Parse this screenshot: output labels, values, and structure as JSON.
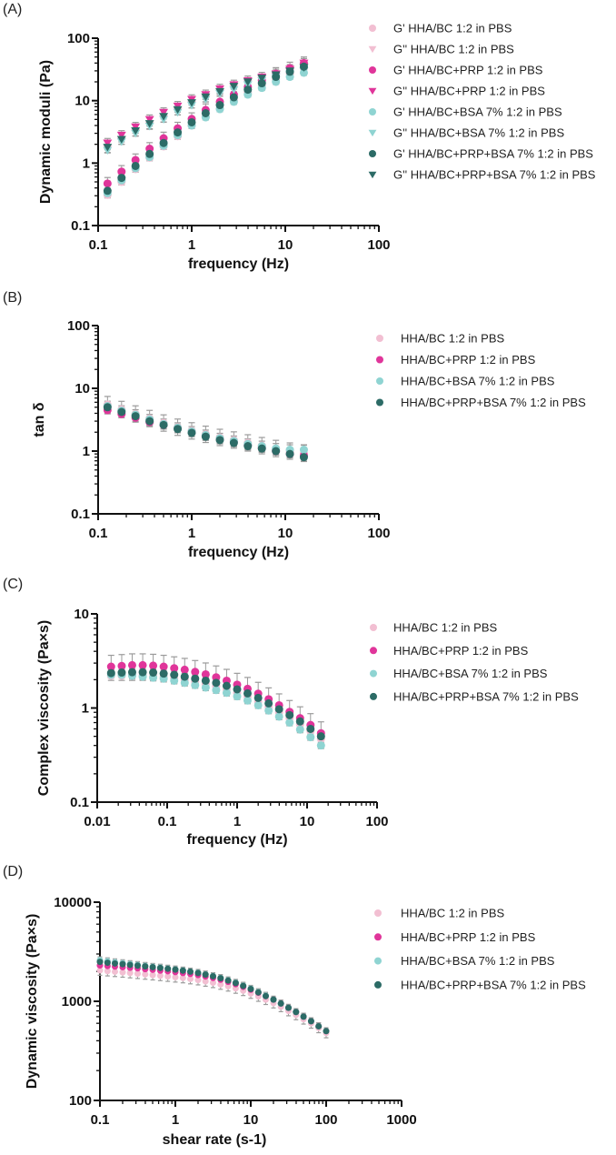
{
  "colors": {
    "bc": "#f2bfd2",
    "prp": "#e0359a",
    "bsa": "#8fd4d2",
    "prpbsa": "#2c6b66",
    "error": "#9a9a9a",
    "axis": "#111111"
  },
  "chart_data": [
    {
      "panel": "(A)",
      "type": "scatter",
      "xscale": "log",
      "yscale": "log",
      "xlabel": "frequency (Hz)",
      "ylabel": "Dynamic moduli (Pa)",
      "xlim": [
        0.1,
        100
      ],
      "ylim": [
        0.1,
        100
      ],
      "xticks": [
        "0.1",
        "1",
        "10",
        "100"
      ],
      "yticks": [
        "0.1",
        "1",
        "10",
        "100"
      ],
      "legend_position": "right",
      "x": [
        0.126,
        0.178,
        0.251,
        0.355,
        0.501,
        0.708,
        1,
        1.41,
        2,
        2.82,
        3.98,
        5.62,
        7.94,
        11.2,
        15.8
      ],
      "series": [
        {
          "name": "G' HHA/BC 1:2 in PBS",
          "color": "bc",
          "marker": "circle",
          "err": 0.12,
          "values": [
            0.31,
            0.5,
            0.8,
            1.22,
            1.85,
            2.7,
            4.0,
            5.5,
            7.5,
            10,
            13.5,
            17.5,
            22,
            27,
            33
          ]
        },
        {
          "name": "G'' HHA/BC 1:2 in PBS",
          "color": "bc",
          "marker": "triangle",
          "err": 0.15,
          "values": [
            1.7,
            2.3,
            3.1,
            4.0,
            5.2,
            6.8,
            8.8,
            11,
            13.5,
            16,
            19,
            22,
            26,
            30,
            35
          ]
        },
        {
          "name": "G' HHA/BC+PRP 1:2 in PBS",
          "color": "prp",
          "marker": "circle",
          "err": 0.25,
          "values": [
            0.47,
            0.73,
            1.12,
            1.7,
            2.5,
            3.6,
            5.1,
            7.1,
            9.6,
            12.5,
            16.5,
            21,
            27,
            33,
            40
          ]
        },
        {
          "name": "G'' HHA/BC+PRP 1:2 in PBS",
          "color": "prp",
          "marker": "triangle",
          "err": 0.18,
          "values": [
            2.1,
            2.8,
            3.8,
            5.0,
            6.5,
            8.2,
            10.5,
            12.5,
            15.5,
            18,
            21,
            24,
            27,
            32,
            40
          ]
        },
        {
          "name": "G' HHA/BC+BSA 7% 1:2 in PBS",
          "color": "bsa",
          "marker": "circle",
          "err": 0.1,
          "values": [
            0.33,
            0.53,
            0.83,
            1.25,
            1.9,
            2.8,
            4.0,
            5.4,
            7.3,
            9.6,
            12.5,
            16,
            20,
            24,
            28
          ]
        },
        {
          "name": "G'' HHA/BC+BSA 7% 1:2 in PBS",
          "color": "bsa",
          "marker": "triangle",
          "err": 0.1,
          "values": [
            1.6,
            2.2,
            3.0,
            3.9,
            5.0,
            6.5,
            8.4,
            10.5,
            13,
            15,
            18,
            21,
            24,
            27,
            30
          ]
        },
        {
          "name": "G' HHA/BC+PRP+BSA 7% 1:2 in PBS",
          "color": "prpbsa",
          "marker": "circle",
          "err": 0.1,
          "values": [
            0.36,
            0.58,
            0.9,
            1.4,
            2.1,
            3.1,
            4.5,
            6.3,
            8.5,
            11.3,
            15,
            19,
            24,
            29,
            35
          ]
        },
        {
          "name": "G'' HHA/BC+PRP+BSA 7% 1:2 in PBS",
          "color": "prpbsa",
          "marker": "triangle",
          "err": 0.1,
          "values": [
            1.8,
            2.4,
            3.3,
            4.3,
            5.6,
            7.2,
            9.3,
            11.5,
            14,
            17,
            20,
            23,
            26,
            30,
            34
          ]
        }
      ]
    },
    {
      "panel": "(B)",
      "type": "scatter",
      "xscale": "log",
      "yscale": "log",
      "xlabel": "frequency (Hz)",
      "ylabel": "tan δ",
      "xlim": [
        0.1,
        100
      ],
      "ylim": [
        0.1,
        100
      ],
      "xticks": [
        "0.1",
        "1",
        "10",
        "100"
      ],
      "yticks": [
        "0.1",
        "1",
        "10",
        "100"
      ],
      "legend_position": "right",
      "x": [
        0.126,
        0.178,
        0.251,
        0.355,
        0.501,
        0.708,
        1,
        1.41,
        2,
        2.82,
        3.98,
        5.62,
        7.94,
        11.2,
        15.8
      ],
      "series": [
        {
          "name": "HHA/BC 1:2 in PBS",
          "color": "bc",
          "marker": "circle",
          "err": 0.35,
          "values": [
            5.5,
            4.6,
            3.9,
            3.3,
            2.8,
            2.4,
            2.1,
            1.85,
            1.65,
            1.5,
            1.35,
            1.22,
            1.1,
            1.0,
            0.92
          ]
        },
        {
          "name": "HHA/BC+PRP 1:2 in PBS",
          "color": "prp",
          "marker": "circle",
          "err": 0.15,
          "values": [
            4.5,
            3.9,
            3.4,
            2.9,
            2.6,
            2.3,
            2.0,
            1.75,
            1.55,
            1.4,
            1.25,
            1.12,
            1.0,
            0.9,
            0.85
          ]
        },
        {
          "name": "HHA/BC+BSA 7% 1:2 in PBS",
          "color": "bsa",
          "marker": "circle",
          "err": 0.2,
          "values": [
            5.2,
            4.4,
            3.8,
            3.2,
            2.7,
            2.35,
            2.05,
            1.8,
            1.6,
            1.45,
            1.3,
            1.2,
            1.1,
            1.05,
            1.05
          ]
        },
        {
          "name": "HHA/BC+PRP+BSA 7% 1:2 in PBS",
          "color": "prpbsa",
          "marker": "circle",
          "err": 0.15,
          "values": [
            5.0,
            4.2,
            3.6,
            3.0,
            2.6,
            2.25,
            1.95,
            1.7,
            1.5,
            1.35,
            1.2,
            1.1,
            1.0,
            0.9,
            0.8
          ]
        }
      ]
    },
    {
      "panel": "(C)",
      "type": "scatter",
      "xscale": "log",
      "yscale": "log",
      "xlabel": "frequency (Hz)",
      "ylabel": "Complex viscosity (Pa×s)",
      "xlim": [
        0.01,
        100
      ],
      "ylim": [
        0.1,
        10
      ],
      "xticks": [
        "0.01",
        "0.1",
        "1",
        "10",
        "100"
      ],
      "yticks": [
        "0.1",
        "1",
        "10"
      ],
      "legend_position": "right",
      "x": [
        0.0158,
        0.0224,
        0.0316,
        0.0447,
        0.0631,
        0.0891,
        0.126,
        0.178,
        0.251,
        0.355,
        0.501,
        0.708,
        1,
        1.41,
        2,
        2.82,
        3.98,
        5.62,
        7.94,
        11.2,
        15.8
      ],
      "series": [
        {
          "name": "HHA/BC 1:2 in PBS",
          "color": "bc",
          "marker": "circle",
          "err": 0.12,
          "values": [
            2.2,
            2.2,
            2.2,
            2.2,
            2.18,
            2.12,
            2.05,
            1.97,
            1.9,
            1.8,
            1.7,
            1.58,
            1.45,
            1.32,
            1.17,
            1.03,
            0.9,
            0.78,
            0.67,
            0.57,
            0.47
          ]
        },
        {
          "name": "HHA/BC+PRP 1:2 in PBS",
          "color": "prp",
          "marker": "circle",
          "err": 0.32,
          "values": [
            2.75,
            2.8,
            2.85,
            2.85,
            2.82,
            2.75,
            2.65,
            2.55,
            2.42,
            2.28,
            2.12,
            1.95,
            1.77,
            1.6,
            1.42,
            1.24,
            1.07,
            0.91,
            0.78,
            0.66,
            0.54
          ]
        },
        {
          "name": "HHA/BC+BSA 7% 1:2 in PBS",
          "color": "bsa",
          "marker": "circle",
          "err": 0.08,
          "values": [
            2.25,
            2.25,
            2.2,
            2.15,
            2.1,
            2.05,
            1.95,
            1.85,
            1.75,
            1.65,
            1.55,
            1.45,
            1.33,
            1.2,
            1.07,
            0.94,
            0.81,
            0.7,
            0.59,
            0.49,
            0.4
          ]
        },
        {
          "name": "HHA/BC+PRP+BSA 7% 1:2 in PBS",
          "color": "prpbsa",
          "marker": "circle",
          "err": 0.08,
          "values": [
            2.35,
            2.38,
            2.4,
            2.4,
            2.38,
            2.32,
            2.25,
            2.15,
            2.05,
            1.95,
            1.85,
            1.72,
            1.58,
            1.43,
            1.28,
            1.12,
            0.97,
            0.84,
            0.72,
            0.6,
            0.5
          ]
        }
      ]
    },
    {
      "panel": "(D)",
      "type": "scatter",
      "xscale": "log",
      "yscale": "log",
      "xlabel": "shear rate (s-1)",
      "ylabel": "Dynamic viscosity (Pa×s)",
      "xlim": [
        0.1,
        1000
      ],
      "ylim": [
        100,
        10000
      ],
      "xticks": [
        "0.1",
        "1",
        "10",
        "100",
        "1000"
      ],
      "yticks": [
        "100",
        "1000",
        "10000"
      ],
      "legend_position": "right",
      "x": [
        0.1,
        0.126,
        0.158,
        0.2,
        0.251,
        0.316,
        0.398,
        0.501,
        0.631,
        0.794,
        1,
        1.26,
        1.58,
        2,
        2.51,
        3.16,
        3.98,
        5.01,
        6.31,
        7.94,
        10,
        12.6,
        15.8,
        20,
        25.1,
        31.6,
        39.8,
        50.1,
        63.1,
        79.4,
        100
      ],
      "series": [
        {
          "name": "HHA/BC 1:2 in PBS",
          "color": "bc",
          "marker": "circle",
          "err": 0.12,
          "values": [
            2050,
            2020,
            1990,
            1960,
            1930,
            1900,
            1870,
            1840,
            1810,
            1780,
            1750,
            1720,
            1680,
            1640,
            1590,
            1540,
            1480,
            1420,
            1350,
            1280,
            1200,
            1120,
            1040,
            960,
            880,
            800,
            730,
            660,
            600,
            540,
            480
          ]
        },
        {
          "name": "HHA/BC+PRP 1:2 in PBS",
          "color": "prp",
          "marker": "circle",
          "err": 0.08,
          "values": [
            2300,
            2270,
            2240,
            2210,
            2180,
            2150,
            2110,
            2080,
            2040,
            2010,
            1970,
            1930,
            1890,
            1840,
            1780,
            1720,
            1650,
            1570,
            1490,
            1400,
            1310,
            1220,
            1130,
            1040,
            950,
            860,
            780,
            700,
            630,
            560,
            500
          ]
        },
        {
          "name": "HHA/BC+BSA 7% 1:2 in PBS",
          "color": "bsa",
          "marker": "circle",
          "err": 0.08,
          "values": [
            2600,
            2540,
            2480,
            2430,
            2380,
            2330,
            2280,
            2230,
            2190,
            2140,
            2100,
            2050,
            2000,
            1940,
            1870,
            1800,
            1720,
            1630,
            1540,
            1440,
            1340,
            1240,
            1140,
            1040,
            950,
            860,
            780,
            700,
            630,
            560,
            500
          ]
        },
        {
          "name": "HHA/BC+PRP+BSA 7% 1:2 in PBS",
          "color": "prpbsa",
          "marker": "circle",
          "err": 0.08,
          "values": [
            2500,
            2450,
            2410,
            2370,
            2330,
            2290,
            2250,
            2210,
            2170,
            2130,
            2090,
            2040,
            1990,
            1930,
            1860,
            1790,
            1710,
            1620,
            1530,
            1430,
            1330,
            1230,
            1130,
            1040,
            950,
            860,
            780,
            700,
            630,
            560,
            500
          ]
        }
      ]
    }
  ]
}
